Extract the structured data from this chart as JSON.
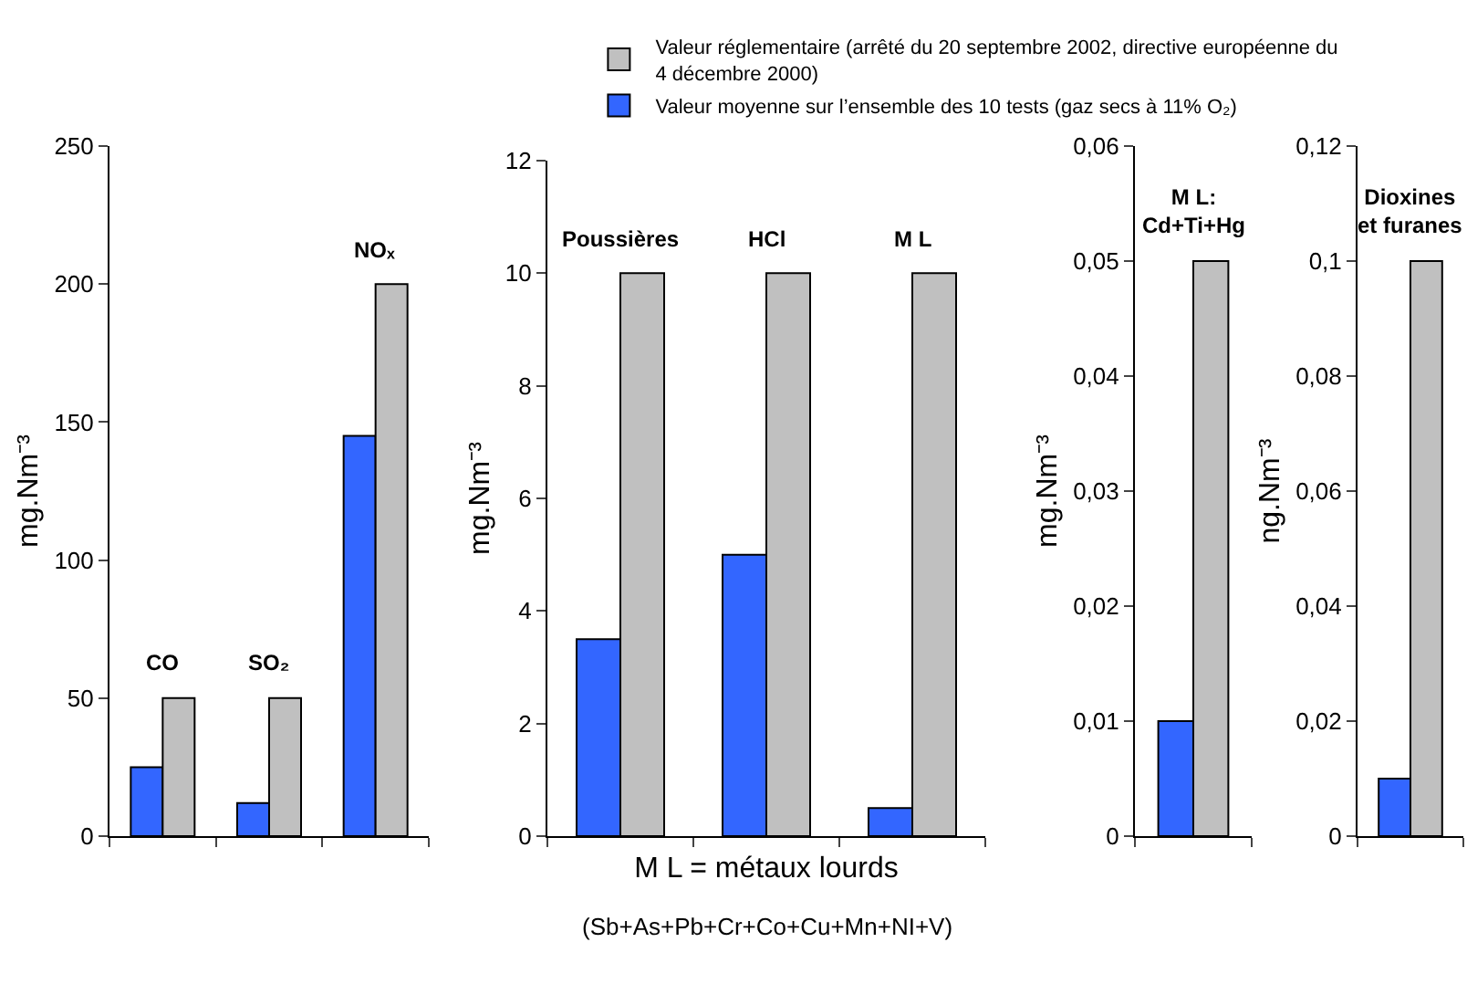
{
  "chart_data": [
    {
      "type": "bar",
      "categories": [
        "CO",
        "SO₂",
        "NOₓ"
      ],
      "ylabel": "mg.Nm⁻³",
      "ylim": [
        0,
        250
      ],
      "yticks": [
        0,
        50,
        100,
        150,
        200,
        250
      ],
      "tick_labels": "y",
      "series": [
        {
          "color": "#3366ff",
          "values": [
            25,
            12,
            145
          ]
        },
        {
          "color": "#c0c0c0",
          "values": [
            50,
            50,
            200
          ]
        }
      ]
    },
    {
      "type": "bar",
      "categories": [
        "Poussières",
        "HCl",
        "M L"
      ],
      "ylabel": "mg.Nm⁻³",
      "xlabel": "M L = métaux lourds",
      "annotations": [
        "(Sb+As+Pb+Cr+Co+Cu+Mn+NI+V)"
      ],
      "ylim": [
        0,
        12
      ],
      "yticks": [
        0,
        2,
        4,
        6,
        8,
        10,
        12
      ],
      "tick_labels": "y",
      "legend": "top",
      "series": [
        {
          "name": "Valeur moyenne sur l’ensemble des 10 tests (gaz secs à 11% O₂)",
          "color": "#3366ff",
          "values": [
            3.5,
            5,
            0.5
          ]
        },
        {
          "name": "Valeur réglementaire (arrêté du 20 septembre 2002, directive européenne du 4 décembre 2000)",
          "color": "#c0c0c0",
          "values": [
            10,
            10,
            10
          ]
        }
      ]
    },
    {
      "type": "bar",
      "categories": [
        "M L:\nCd+Ti+Hg"
      ],
      "ylabel": "mg.Nm⁻³",
      "ylim": [
        0,
        0.06
      ],
      "yticks": [
        0,
        {
          "value": 0.01,
          "label": "0,01"
        },
        {
          "value": 0.02,
          "label": "0,02"
        },
        {
          "value": 0.03,
          "label": "0,03"
        },
        {
          "value": 0.04,
          "label": "0,04"
        },
        {
          "value": 0.05,
          "label": "0,05"
        },
        {
          "value": 0.06,
          "label": "0,06"
        }
      ],
      "tick_labels": "y",
      "series": [
        {
          "color": "#3366ff",
          "values": [
            0.01
          ]
        },
        {
          "color": "#c0c0c0",
          "values": [
            0.05
          ]
        }
      ]
    },
    {
      "type": "bar",
      "categories": [
        "Dioxines\net furanes"
      ],
      "ylabel": "ng.Nm⁻³",
      "ylim": [
        0,
        0.12
      ],
      "yticks": [
        0,
        {
          "value": 0.02,
          "label": "0,02"
        },
        {
          "value": 0.04,
          "label": "0,04"
        },
        {
          "value": 0.06,
          "label": "0,06"
        },
        {
          "value": 0.08,
          "label": "0,08"
        },
        {
          "value": 0.1,
          "label": "0,1"
        },
        {
          "value": 0.12,
          "label": "0,12"
        }
      ],
      "tick_labels": "y",
      "series": [
        {
          "color": "#3366ff",
          "values": [
            0.01
          ]
        },
        {
          "color": "#c0c0c0",
          "values": [
            0.1
          ]
        }
      ]
    }
  ]
}
